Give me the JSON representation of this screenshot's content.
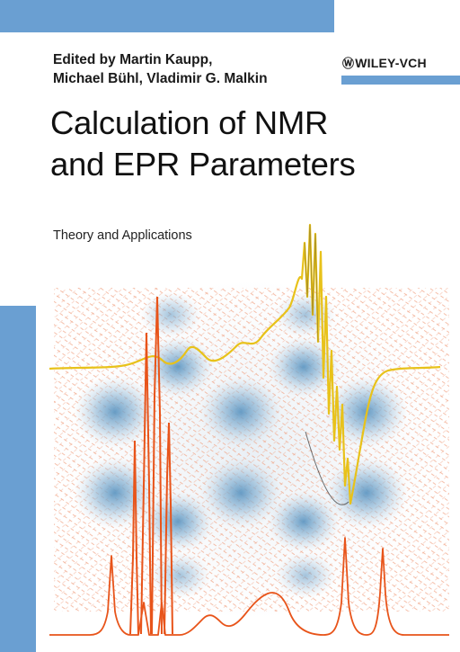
{
  "cover": {
    "editors_line1": "Edited by Martin Kaupp,",
    "editors_line2": "Michael Bühl, Vladimir G. Malkin",
    "publisher": "WILEY-VCH",
    "title_line1": "Calculation of NMR",
    "title_line2": "and EPR Parameters",
    "subtitle": "Theory and Applications"
  },
  "colors": {
    "band": "#6a9fd2",
    "orange_trace": "#e8541a",
    "yellow_trace": "#e8c21a",
    "density_blue": "#6aa0c8",
    "vector_field": "#f0a080"
  },
  "artwork": {
    "description_icon": "nmr-spectrum-and-current-density-icon"
  }
}
